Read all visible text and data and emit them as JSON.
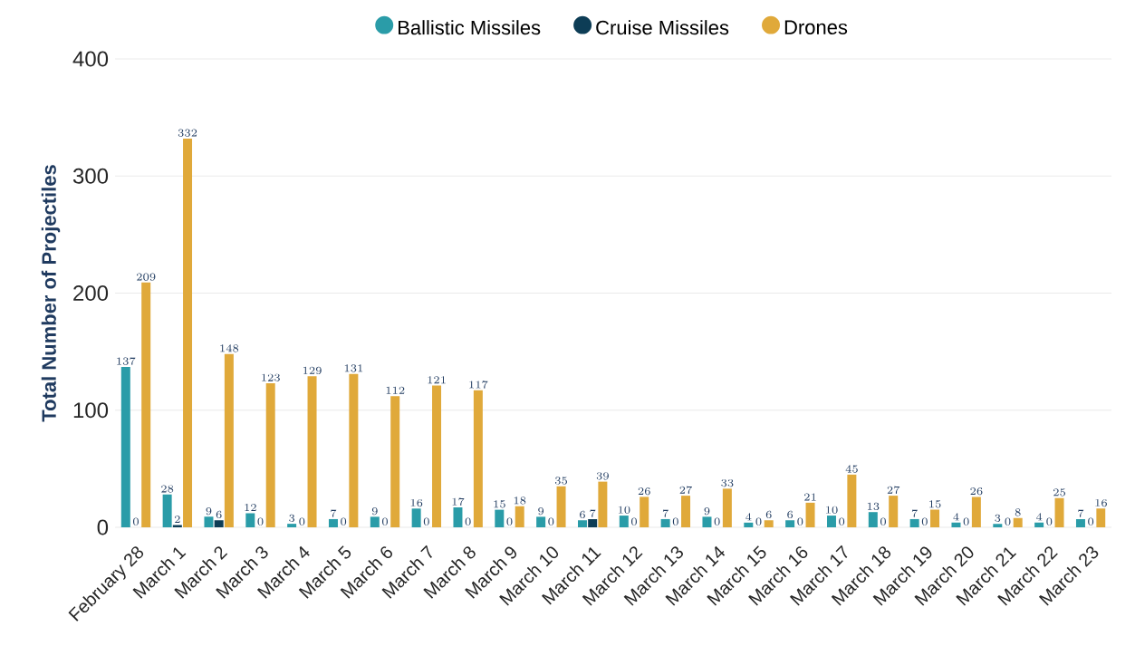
{
  "chart_data": {
    "type": "bar",
    "ylabel": "Total Number of Projectiles",
    "categories": [
      "February 28",
      "March 1",
      "March 2",
      "March 3",
      "March 4",
      "March 5",
      "March 6",
      "March 7",
      "March 8",
      "March 9",
      "March 10",
      "March 11",
      "March 12",
      "March 13",
      "March 14",
      "March 15",
      "March 16",
      "March 17",
      "March 18",
      "March 19",
      "March 20",
      "March 21",
      "March 22",
      "March 23"
    ],
    "series": [
      {
        "name": "Ballistic Missiles",
        "color": "#2a9ca8",
        "values": [
          137,
          28,
          9,
          12,
          3,
          7,
          9,
          16,
          17,
          15,
          9,
          6,
          10,
          7,
          9,
          4,
          6,
          10,
          13,
          7,
          4,
          3,
          4,
          7
        ]
      },
      {
        "name": "Cruise Missiles",
        "color": "#0d3d56",
        "values": [
          0,
          2,
          6,
          0,
          0,
          0,
          0,
          0,
          0,
          0,
          0,
          7,
          0,
          0,
          0,
          0,
          0,
          0,
          0,
          0,
          0,
          0,
          0,
          0
        ]
      },
      {
        "name": "Drones",
        "color": "#e0a93a",
        "values": [
          209,
          332,
          148,
          123,
          129,
          131,
          112,
          121,
          117,
          18,
          35,
          39,
          26,
          27,
          33,
          6,
          21,
          45,
          27,
          15,
          26,
          8,
          25,
          16
        ]
      }
    ],
    "ylim": [
      0,
      400
    ],
    "yticks": [
      0,
      100,
      200,
      300,
      400
    ],
    "grid": "y",
    "legend": "top",
    "data_labels": true
  }
}
